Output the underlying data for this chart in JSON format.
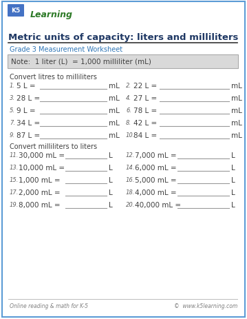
{
  "title": "Metric units of capacity: liters and milliliters",
  "subtitle": "Grade 3 Measurement Worksheet",
  "note": "Note:  1 liter (L)  = 1,000 milliliter (mL)",
  "section1_header": "Convert litres to milliliters",
  "section2_header": "Convert milliliters to liters",
  "col1_problems": [
    {
      "num": "1.",
      "text": "5 L =",
      "unit": "mL"
    },
    {
      "num": "3.",
      "text": "28 L =",
      "unit": "mL"
    },
    {
      "num": "5.",
      "text": "9 L =",
      "unit": "mL"
    },
    {
      "num": "7.",
      "text": "34 L =",
      "unit": "mL"
    },
    {
      "num": "9.",
      "text": "87 L =",
      "unit": "mL"
    }
  ],
  "col2_problems": [
    {
      "num": "2.",
      "text": "22 L =",
      "unit": "mL"
    },
    {
      "num": "4.",
      "text": "27 L =",
      "unit": "mL"
    },
    {
      "num": "6.",
      "text": "78 L =",
      "unit": "mL"
    },
    {
      "num": "8.",
      "text": "42 L =",
      "unit": "mL"
    },
    {
      "num": "10.",
      "text": "84 L =",
      "unit": "mL"
    }
  ],
  "col3_problems": [
    {
      "num": "11.",
      "text": "30,000 mL =",
      "unit": "L"
    },
    {
      "num": "13.",
      "text": "10,000 mL =",
      "unit": "L"
    },
    {
      "num": "15.",
      "text": "1,000 mL =",
      "unit": "L"
    },
    {
      "num": "17.",
      "text": "2,000 mL =",
      "unit": "L"
    },
    {
      "num": "19.",
      "text": "8,000 mL =",
      "unit": "L"
    }
  ],
  "col4_problems": [
    {
      "num": "12.",
      "text": "7,000 mL =",
      "unit": "L"
    },
    {
      "num": "14.",
      "text": "6,000 mL =",
      "unit": "L"
    },
    {
      "num": "16.",
      "text": "5,000 mL =",
      "unit": "L"
    },
    {
      "num": "18.",
      "text": "4,000 mL =",
      "unit": "L"
    },
    {
      "num": "20.",
      "text": "40,000 mL =",
      "unit": "L"
    }
  ],
  "footer_left": "Online reading & math for K-5",
  "footer_right": "©  www.k5learning.com",
  "border_color": "#5b9bd5",
  "title_color": "#1f3864",
  "subtitle_color": "#2e75b6",
  "note_color": "#404040",
  "note_bg": "#d9d9d9",
  "section_header_color": "#404040",
  "problem_color": "#404040",
  "num_color": "#606060",
  "line_color": "#999999",
  "footer_color": "#808080",
  "bg_color": "#ffffff"
}
